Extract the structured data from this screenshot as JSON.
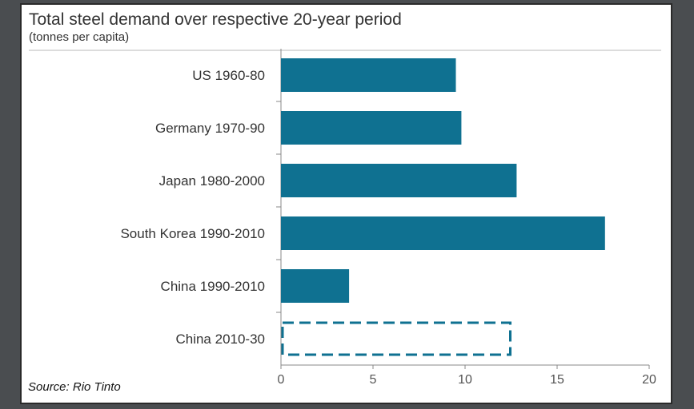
{
  "chart_data": {
    "type": "bar",
    "orientation": "horizontal",
    "title": "Total steel demand over respective 20-year period",
    "subtitle": "(tonnes per capita)",
    "categories": [
      "US 1960-80",
      "Germany 1970-90",
      "Japan 1980-2000",
      "South Korea 1990-2010",
      "China 1990-2010",
      "China 2010-30"
    ],
    "values": [
      9.5,
      9.8,
      12.8,
      17.6,
      3.7,
      12.5
    ],
    "projected": [
      false,
      false,
      false,
      false,
      false,
      true
    ],
    "xlim": [
      0,
      20
    ],
    "xticks": [
      "0",
      "5",
      "10",
      "15",
      "20"
    ],
    "grid": false,
    "source": "Source: Rio Tinto"
  },
  "colors": {
    "bar": "#0f7191",
    "projected_outline": "#0f7191",
    "axis": "#888888",
    "text": "#333333"
  }
}
